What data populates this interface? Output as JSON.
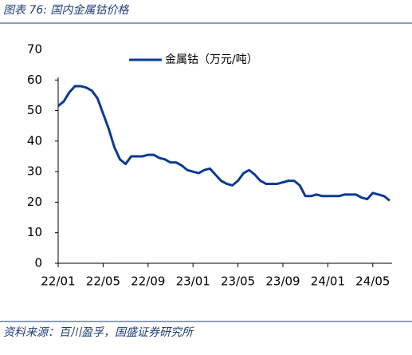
{
  "chart_data": {
    "type": "line",
    "title": "图表 76:  国内金属钴价格",
    "source": "资料来源：百川盈孚，国盛证券研究所",
    "categories": [
      "22/01",
      null,
      null,
      null,
      null,
      null,
      null,
      null,
      "22/05",
      null,
      null,
      null,
      null,
      null,
      null,
      null,
      "22/09",
      null,
      null,
      null,
      null,
      null,
      null,
      null,
      "23/01",
      null,
      null,
      null,
      null,
      null,
      null,
      null,
      "23/05",
      null,
      null,
      null,
      null,
      null,
      null,
      null,
      "23/09",
      null,
      null,
      null,
      null,
      null,
      null,
      null,
      "24/01",
      null,
      null,
      null,
      null,
      null,
      null,
      null,
      "24/05",
      null,
      null,
      null
    ],
    "series": [
      {
        "name": "金属钴（万元/吨）",
        "color": "#0b3a94",
        "values": [
          51.5,
          53,
          56,
          58,
          58,
          57.5,
          56.5,
          54,
          49,
          44,
          38,
          34,
          32.5,
          35,
          35,
          35,
          35.5,
          35.5,
          34.5,
          34,
          33,
          33,
          32,
          30.5,
          30,
          29.5,
          30.5,
          31,
          29,
          27,
          26,
          25.5,
          27,
          29.5,
          30.5,
          29,
          27,
          26,
          26,
          26,
          26.5,
          27,
          27,
          25.5,
          22,
          22,
          22.5,
          22,
          22,
          22,
          22,
          22.5,
          22.5,
          22.5,
          21.5,
          21,
          23,
          22.5,
          22,
          20.5
        ]
      }
    ],
    "ylim": [
      0,
      70
    ],
    "yticks": [
      0,
      10,
      20,
      30,
      40,
      50,
      60,
      70
    ],
    "legend": "top",
    "grid": false
  }
}
